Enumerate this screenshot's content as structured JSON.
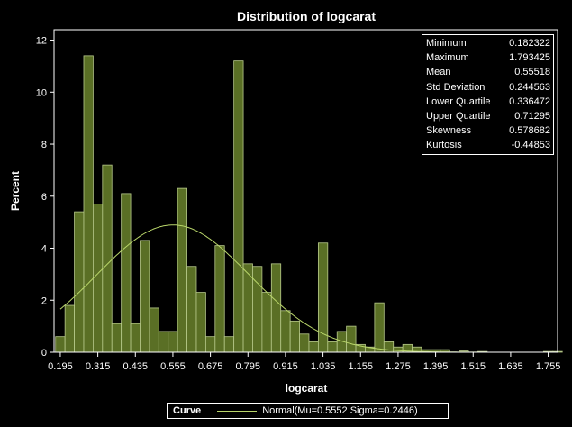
{
  "chart_data": {
    "type": "histogram",
    "title": "Distribution of logcarat",
    "xlabel": "logcarat",
    "ylabel": "Percent",
    "xlim": [
      0.175,
      1.785
    ],
    "ylim": [
      0,
      12.4
    ],
    "bin_width": 0.03,
    "bin_start": 0.18,
    "x_ticks": [
      "0.195",
      "0.315",
      "0.435",
      "0.555",
      "0.675",
      "0.795",
      "0.915",
      "1.035",
      "1.155",
      "1.275",
      "1.395",
      "1.515",
      "1.635",
      "1.755"
    ],
    "x_tick_values": [
      0.195,
      0.315,
      0.435,
      0.555,
      0.675,
      0.795,
      0.915,
      1.035,
      1.155,
      1.275,
      1.395,
      1.515,
      1.635,
      1.755
    ],
    "y_ticks": [
      "0",
      "2",
      "4",
      "6",
      "8",
      "10",
      "12"
    ],
    "y_tick_values": [
      0,
      2,
      4,
      6,
      8,
      10,
      12
    ],
    "values": [
      0.6,
      1.8,
      5.4,
      11.4,
      5.7,
      7.2,
      1.1,
      6.1,
      1.1,
      4.3,
      1.7,
      0.8,
      0.8,
      6.3,
      3.3,
      2.3,
      0.6,
      4.1,
      0.6,
      11.2,
      3.4,
      3.3,
      2.3,
      3.4,
      1.6,
      1.2,
      0.7,
      0.4,
      4.2,
      0.4,
      0.8,
      1.0,
      0.3,
      0.2,
      1.9,
      0.4,
      0.2,
      0.3,
      0.2,
      0.1,
      0.1,
      0.1,
      0,
      0.05,
      0,
      0.03,
      0,
      0,
      0,
      0,
      0,
      0,
      0.03,
      0.03
    ],
    "normal_curve": {
      "mu": 0.5552,
      "sigma": 0.2446,
      "color": "#b9d66a"
    },
    "bar_color": "#5a6f25",
    "bar_edge_color": "#b7c98a",
    "statistics": [
      {
        "label": "Minimum",
        "value": "0.182322"
      },
      {
        "label": "Maximum",
        "value": "1.793425"
      },
      {
        "label": "Mean",
        "value": "0.55518"
      },
      {
        "label": "Std Deviation",
        "value": "0.244563"
      },
      {
        "label": "Lower Quartile",
        "value": "0.336472"
      },
      {
        "label": "Upper Quartile",
        "value": "0.71295"
      },
      {
        "label": "Skewness",
        "value": "0.578682"
      },
      {
        "label": "Kurtosis",
        "value": "-0.44853"
      }
    ],
    "legend": {
      "title": "Curve",
      "entry": "Normal(Mu=0.5552 Sigma=0.2446)"
    }
  }
}
